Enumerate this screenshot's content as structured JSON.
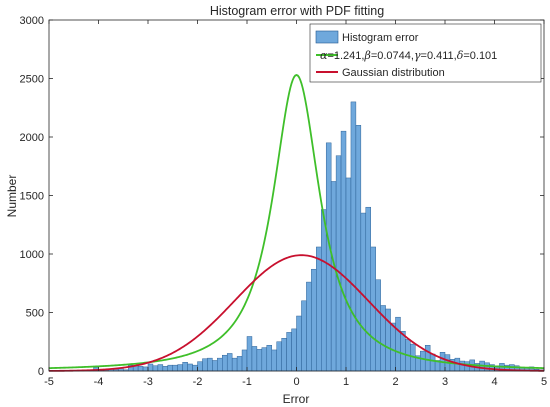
{
  "chart_data": {
    "type": "bar",
    "title": "Histogram error with PDF fitting",
    "xlabel": "Error",
    "ylabel": "Number",
    "xlim": [
      -5,
      5
    ],
    "ylim": [
      0,
      3000
    ],
    "xticks": [
      "-5",
      "-4",
      "-3",
      "-2",
      "-1",
      "0",
      "1",
      "2",
      "3",
      "4",
      "5"
    ],
    "yticks": [
      "0",
      "500",
      "1000",
      "1500",
      "2000",
      "2500",
      "3000"
    ],
    "bin_width": 0.1,
    "bin_start": -5.0,
    "histogram": {
      "name": "Histogram error",
      "color": "#6fa8dc",
      "edge_color": "#24598f",
      "values": [
        0,
        0,
        0,
        0,
        0,
        0,
        0,
        0,
        5,
        30,
        10,
        5,
        20,
        15,
        25,
        10,
        50,
        45,
        40,
        35,
        60,
        45,
        55,
        40,
        50,
        50,
        55,
        75,
        60,
        50,
        80,
        105,
        110,
        90,
        110,
        135,
        150,
        110,
        125,
        180,
        295,
        210,
        185,
        200,
        220,
        180,
        250,
        280,
        330,
        360,
        470,
        600,
        760,
        870,
        1060,
        1380,
        1950,
        1620,
        1840,
        2050,
        1650,
        2300,
        2100,
        1350,
        1400,
        1060,
        780,
        560,
        530,
        410,
        460,
        340,
        270,
        230,
        130,
        170,
        220,
        145,
        90,
        160,
        140,
        100,
        110,
        85,
        80,
        95,
        65,
        85,
        70,
        55,
        45,
        65,
        50,
        55,
        45,
        30,
        25,
        35,
        15,
        10
      ]
    },
    "curves": [
      {
        "name": "α=1.241,β=0.0744,γ=0.411,δ=0.101",
        "legend_parts": [
          {
            "greek": "α",
            "text": "=1.241,"
          },
          {
            "greek": "β",
            "text": "=0.0744,"
          },
          {
            "greek": "γ",
            "text": "=0.411,"
          },
          {
            "greek": "δ",
            "text": "=0.101"
          }
        ],
        "color": "#3fbf2a",
        "model": "student-t-like",
        "peak": 2530,
        "center": 0.0,
        "scale": 0.56,
        "shape": 1.2
      },
      {
        "name": "Gaussian distribution",
        "color": "#c8102e",
        "model": "gaussian",
        "peak": 990,
        "center": 0.1,
        "sigma": 1.35
      }
    ],
    "legend_position": "top-right",
    "grid": false
  }
}
